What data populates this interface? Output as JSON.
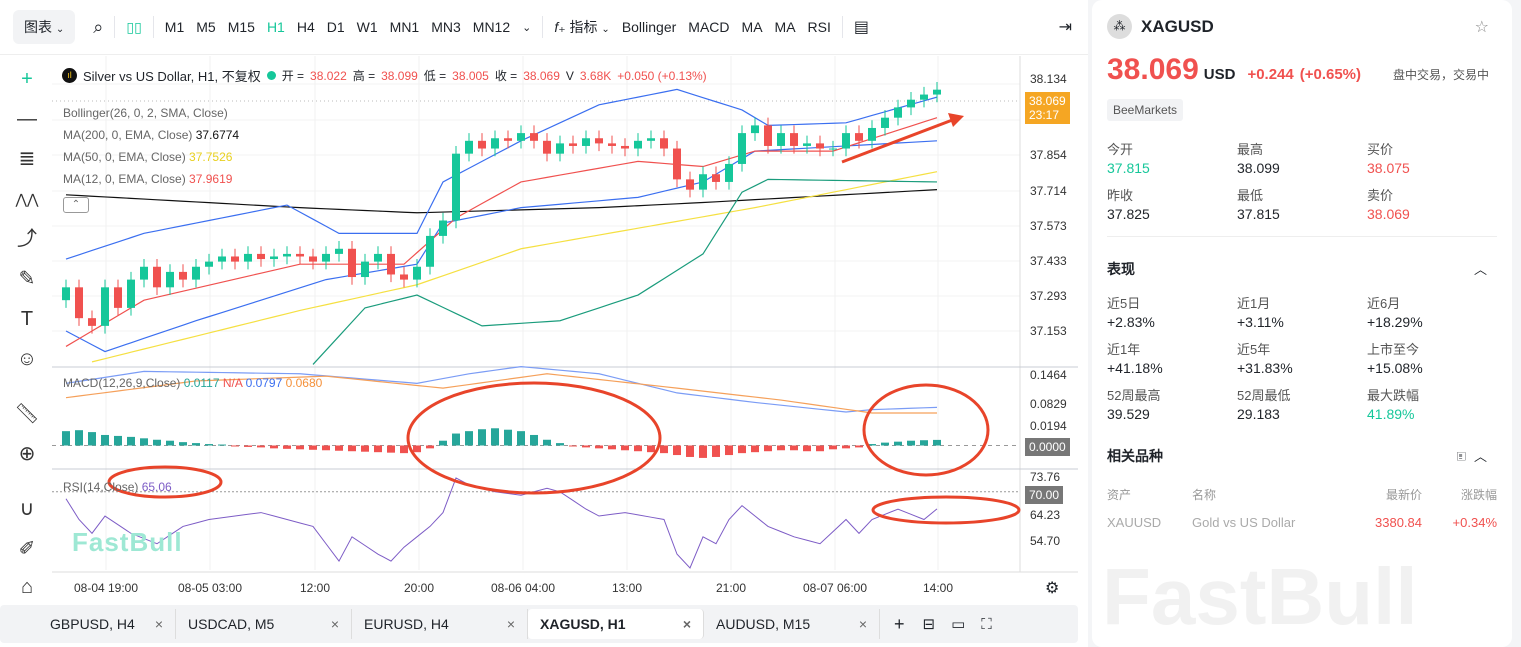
{
  "toolbar": {
    "chart_label": "图表",
    "timeframes": [
      "M1",
      "M5",
      "M15",
      "H1",
      "H4",
      "D1",
      "W1",
      "MN1",
      "MN3",
      "MN12"
    ],
    "active_timeframe": "H1",
    "indicator_label": "指标",
    "indicators": [
      "Bollinger",
      "MACD",
      "MA",
      "MA",
      "RSI"
    ]
  },
  "legend": {
    "title": "Silver vs US Dollar, H1, 不复权",
    "open_label": "开 =",
    "open": "38.022",
    "high_label": "高 =",
    "high": "38.099",
    "low_label": "低 =",
    "low": "38.005",
    "close_label": "收 =",
    "close": "38.069",
    "volume_label": "V",
    "volume": "3.68K",
    "change": "+0.050 (+0.13%)"
  },
  "indicators": {
    "bollinger": "Bollinger(26, 0, 2, SMA, Close)",
    "ma200": "MA(200, 0, EMA, Close)",
    "ma200_value": "37.6774",
    "ma50": "MA(50, 0, EMA, Close)",
    "ma50_value": "37.7526",
    "ma12": "MA(12, 0, EMA, Close)",
    "ma12_value": "37.9619",
    "macd": "MACD(12,26,9,Close)",
    "macd_hist": "0.0117",
    "macd_na": "N/A",
    "macd_line": "0.0797",
    "macd_signal": "0.0680",
    "rsi": "RSI(14,Close)",
    "rsi_value": "65.06"
  },
  "price_axis": [
    "38.134",
    "37.854",
    "37.714",
    "37.573",
    "37.433",
    "37.293",
    "37.153"
  ],
  "price_tag": {
    "price": "38.069",
    "countdown": "23:17"
  },
  "macd_axis": [
    "0.1464",
    "0.0829",
    "0.0194"
  ],
  "macd_tag": "0.0000",
  "rsi_axis": [
    "73.76",
    "64.23",
    "54.70"
  ],
  "rsi_tag": "70.00",
  "time_axis": [
    "08-04 19:00",
    "08-05 03:00",
    "12:00",
    "20:00",
    "08-06 04:00",
    "13:00",
    "21:00",
    "08-07 06:00",
    "14:00"
  ],
  "watermark": "FastBull",
  "colors": {
    "up": "#16c79a",
    "down": "#f0514f",
    "accent": "#16c79a",
    "price_tag": "#f5a623",
    "annotation": "#e8442a",
    "bb": "#3b6ff0",
    "ma200": "#111111",
    "ma50": "#f5e042",
    "ma12": "#f0514f",
    "macd": "#7b9cf5",
    "signal": "#f5a05a",
    "rsi": "#7d5cc6"
  },
  "chart_data": {
    "type": "candlestick",
    "closes": [
      37.3,
      37.18,
      37.15,
      37.3,
      37.22,
      37.33,
      37.38,
      37.3,
      37.36,
      37.33,
      37.38,
      37.4,
      37.42,
      37.4,
      37.43,
      37.41,
      37.42,
      37.43,
      37.42,
      37.4,
      37.43,
      37.45,
      37.34,
      37.4,
      37.43,
      37.35,
      37.33,
      37.38,
      37.5,
      37.56,
      37.82,
      37.87,
      37.84,
      37.88,
      37.87,
      37.9,
      37.87,
      37.82,
      37.86,
      37.85,
      37.88,
      37.86,
      37.85,
      37.84,
      37.87,
      37.88,
      37.84,
      37.72,
      37.68,
      37.74,
      37.71,
      37.78,
      37.9,
      37.93,
      37.85,
      37.9,
      37.85,
      37.86,
      37.84,
      37.84,
      37.9,
      37.87,
      37.92,
      37.96,
      38.0,
      38.03,
      38.05,
      38.069
    ],
    "price_range": [
      36.99,
      38.2
    ],
    "bb_upper": [
      [
        0,
        37.41
      ],
      [
        6,
        37.51
      ],
      [
        17,
        37.62
      ],
      [
        21,
        37.51
      ],
      [
        27,
        37.51
      ],
      [
        29,
        37.71
      ],
      [
        35,
        37.87
      ],
      [
        41,
        38.01
      ],
      [
        47,
        38.07
      ],
      [
        52,
        37.99
      ],
      [
        54,
        37.93
      ],
      [
        60,
        37.94
      ],
      [
        67,
        38.04
      ]
    ],
    "bb_mid": [
      [
        0,
        37.13
      ],
      [
        3,
        37.05
      ],
      [
        10,
        37.17
      ],
      [
        20,
        37.33
      ],
      [
        27,
        37.39
      ],
      [
        29,
        37.55
      ],
      [
        35,
        37.61
      ],
      [
        44,
        37.65
      ],
      [
        49,
        37.71
      ],
      [
        53,
        37.83
      ],
      [
        67,
        37.87
      ]
    ],
    "bb_lower": [
      [
        19,
        37.0
      ],
      [
        23,
        37.22
      ],
      [
        27,
        37.27
      ],
      [
        32,
        37.15
      ],
      [
        38,
        37.17
      ],
      [
        44,
        37.27
      ],
      [
        49,
        37.43
      ],
      [
        52,
        37.67
      ],
      [
        54,
        37.72
      ],
      [
        67,
        37.71
      ]
    ],
    "ma200": [
      [
        0,
        37.66
      ],
      [
        18,
        37.61
      ],
      [
        27,
        37.59
      ],
      [
        41,
        37.61
      ],
      [
        49,
        37.63
      ],
      [
        67,
        37.68
      ]
    ],
    "ma50": [
      [
        2,
        37.01
      ],
      [
        18,
        37.21
      ],
      [
        27,
        37.31
      ],
      [
        35,
        37.45
      ],
      [
        44,
        37.53
      ],
      [
        53,
        37.61
      ],
      [
        67,
        37.75
      ]
    ],
    "ma12": [
      [
        0,
        37.07
      ],
      [
        6,
        37.25
      ],
      [
        18,
        37.39
      ],
      [
        26,
        37.39
      ],
      [
        30,
        37.57
      ],
      [
        35,
        37.71
      ],
      [
        44,
        37.79
      ],
      [
        49,
        37.77
      ],
      [
        53,
        37.83
      ],
      [
        59,
        37.83
      ],
      [
        67,
        37.96
      ]
    ],
    "macd_hist": [
      0.03,
      0.032,
      0.028,
      0.022,
      0.02,
      0.018,
      0.015,
      0.012,
      0.01,
      0.007,
      0.005,
      0.003,
      0.002,
      -0.002,
      -0.003,
      -0.004,
      -0.006,
      -0.007,
      -0.008,
      -0.009,
      -0.01,
      -0.011,
      -0.012,
      -0.013,
      -0.014,
      -0.015,
      -0.016,
      -0.014,
      -0.006,
      0.01,
      0.025,
      0.03,
      0.034,
      0.036,
      0.033,
      0.03,
      0.022,
      0.012,
      0.005,
      -0.002,
      -0.004,
      -0.006,
      -0.008,
      -0.01,
      -0.012,
      -0.014,
      -0.016,
      -0.02,
      -0.024,
      -0.026,
      -0.024,
      -0.02,
      -0.016,
      -0.014,
      -0.012,
      -0.01,
      -0.01,
      -0.012,
      -0.012,
      -0.008,
      -0.006,
      -0.004,
      0.003,
      0.006,
      0.008,
      0.01,
      0.011,
      0.0117
    ],
    "macd_line": [
      [
        0,
        0.13
      ],
      [
        6,
        0.155
      ],
      [
        18,
        0.15
      ],
      [
        27,
        0.13
      ],
      [
        31,
        0.15
      ],
      [
        35,
        0.165
      ],
      [
        41,
        0.15
      ],
      [
        47,
        0.11
      ],
      [
        53,
        0.09
      ],
      [
        60,
        0.07
      ],
      [
        62,
        0.075
      ],
      [
        67,
        0.0797
      ]
    ],
    "macd_signal": [
      [
        0,
        0.1
      ],
      [
        10,
        0.135
      ],
      [
        20,
        0.145
      ],
      [
        29,
        0.12
      ],
      [
        37,
        0.15
      ],
      [
        47,
        0.12
      ],
      [
        55,
        0.095
      ],
      [
        62,
        0.068
      ],
      [
        67,
        0.068
      ]
    ],
    "rsi": [
      [
        0,
        68
      ],
      [
        1,
        62
      ],
      [
        2,
        58
      ],
      [
        3,
        63
      ],
      [
        5,
        58
      ],
      [
        7,
        55
      ],
      [
        9,
        60
      ],
      [
        11,
        62
      ],
      [
        13,
        63
      ],
      [
        15,
        64
      ],
      [
        17,
        62
      ],
      [
        19,
        60
      ],
      [
        21,
        50
      ],
      [
        22,
        57
      ],
      [
        24,
        52
      ],
      [
        25,
        50
      ],
      [
        26,
        54
      ],
      [
        28,
        60
      ],
      [
        29,
        64
      ],
      [
        30,
        74
      ],
      [
        31,
        72
      ],
      [
        33,
        70
      ],
      [
        35,
        69
      ],
      [
        37,
        71
      ],
      [
        38,
        70
      ],
      [
        40,
        65
      ],
      [
        41,
        63
      ],
      [
        43,
        64
      ],
      [
        46,
        62
      ],
      [
        47,
        52
      ],
      [
        48,
        48
      ],
      [
        49,
        57
      ],
      [
        50,
        55
      ],
      [
        51,
        62
      ],
      [
        52,
        66
      ],
      [
        54,
        60
      ],
      [
        56,
        57
      ],
      [
        58,
        55
      ],
      [
        60,
        62
      ],
      [
        61,
        58
      ],
      [
        62,
        62
      ],
      [
        64,
        65
      ],
      [
        66,
        62
      ],
      [
        67,
        65.06
      ]
    ],
    "macd_range": [
      -0.045,
      0.16
    ],
    "rsi_range": [
      48,
      76
    ]
  },
  "quote": {
    "symbol": "XAGUSD",
    "price": "38.069",
    "currency": "USD",
    "change": "+0.244",
    "change_pct": "(+0.65%)",
    "status": "盘中交易，交易中",
    "broker": "BeeMarkets",
    "stats": [
      {
        "label": "今开",
        "value": "37.815",
        "color": "green"
      },
      {
        "label": "最高",
        "value": "38.099"
      },
      {
        "label": "买价",
        "value": "38.075",
        "color": "red"
      },
      {
        "label": "昨收",
        "value": "37.825"
      },
      {
        "label": "最低",
        "value": "37.815"
      },
      {
        "label": "卖价",
        "value": "38.069",
        "color": "red"
      }
    ]
  },
  "performance": {
    "title": "表现",
    "items": [
      {
        "label": "近5日",
        "value": "+2.83%"
      },
      {
        "label": "近1月",
        "value": "+3.11%"
      },
      {
        "label": "近6月",
        "value": "+18.29%"
      },
      {
        "label": "近1年",
        "value": "+41.18%"
      },
      {
        "label": "近5年",
        "value": "+31.83%"
      },
      {
        "label": "上市至今",
        "value": "+15.08%"
      },
      {
        "label": "52周最高",
        "value": "39.529"
      },
      {
        "label": "52周最低",
        "value": "29.183"
      },
      {
        "label": "最大跌幅",
        "value": "41.89%",
        "color": "green"
      }
    ]
  },
  "related": {
    "title": "相关品种",
    "headers": [
      "资产",
      "名称",
      "最新价",
      "涨跌幅"
    ],
    "rows": [
      {
        "asset": "XAUUSD",
        "name": "Gold vs US Dollar",
        "price": "3380.84",
        "change": "+0.34%"
      }
    ]
  },
  "tabs": [
    {
      "label": "GBPUSD, H4"
    },
    {
      "label": "USDCAD, M5"
    },
    {
      "label": "EURUSD, H4"
    },
    {
      "label": "XAGUSD, H1",
      "active": true
    },
    {
      "label": "AUDUSD, M15"
    }
  ]
}
